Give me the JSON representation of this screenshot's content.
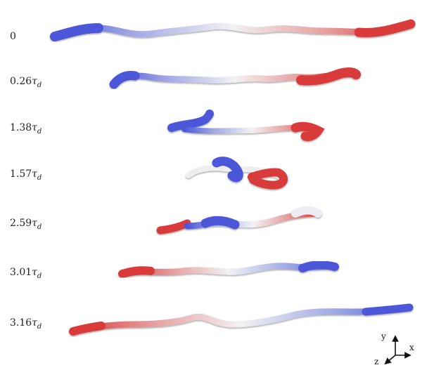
{
  "frames": [
    {
      "time": "0",
      "tau_symbol": "",
      "subscript": ""
    },
    {
      "time": "0.26",
      "tau_symbol": "τ",
      "subscript": "d"
    },
    {
      "time": "1.38",
      "tau_symbol": "τ",
      "subscript": "d"
    },
    {
      "time": "1.57",
      "tau_symbol": "τ",
      "subscript": "d"
    },
    {
      "time": "2.59",
      "tau_symbol": "τ",
      "subscript": "d"
    },
    {
      "time": "3.01",
      "tau_symbol": "τ",
      "subscript": "d"
    },
    {
      "time": "3.16",
      "tau_symbol": "τ",
      "subscript": "d"
    }
  ],
  "axes": {
    "x": "x",
    "y": "y",
    "z": "z"
  },
  "colors": {
    "blue": "#4b57d8",
    "white": "#eeeeee",
    "red": "#d93a3a"
  }
}
